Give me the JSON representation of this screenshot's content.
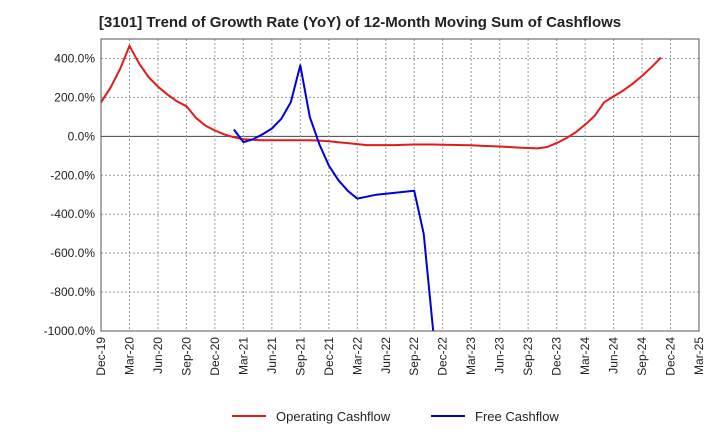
{
  "chart_data": {
    "type": "line",
    "title": "[3101]  Trend of Growth Rate (YoY) of 12-Month Moving Sum of Cashflows",
    "xlabel": "",
    "ylabel": "",
    "ylim": [
      -1000,
      500
    ],
    "grid": true,
    "legend_position": "bottom",
    "x_ticks": [
      "Dec-19",
      "Mar-20",
      "Jun-20",
      "Sep-20",
      "Dec-20",
      "Mar-21",
      "Jun-21",
      "Sep-21",
      "Dec-21",
      "Mar-22",
      "Jun-22",
      "Sep-22",
      "Dec-22",
      "Mar-23",
      "Jun-23",
      "Sep-23",
      "Dec-23",
      "Mar-24",
      "Jun-24",
      "Sep-24",
      "Dec-24",
      "Mar-25"
    ],
    "y_ticks": [
      {
        "value": 400,
        "label": "400.0%"
      },
      {
        "value": 200,
        "label": "200.0%"
      },
      {
        "value": 0,
        "label": "0.0%"
      },
      {
        "value": -200,
        "label": "-200.0%"
      },
      {
        "value": -400,
        "label": "-400.0%"
      },
      {
        "value": -600,
        "label": "-600.0%"
      },
      {
        "value": -800,
        "label": "-800.0%"
      },
      {
        "value": -1000,
        "label": "-1000.0%"
      }
    ],
    "series": [
      {
        "name": "Operating Cashflow",
        "color": "#e31a1c",
        "points": [
          [
            0,
            175
          ],
          [
            1,
            250
          ],
          [
            2,
            345
          ],
          [
            3,
            465
          ],
          [
            4,
            375
          ],
          [
            5,
            305
          ],
          [
            6,
            255
          ],
          [
            7,
            215
          ],
          [
            8,
            180
          ],
          [
            9,
            155
          ],
          [
            10,
            95
          ],
          [
            11,
            55
          ],
          [
            12,
            30
          ],
          [
            13,
            10
          ],
          [
            14,
            -5
          ],
          [
            15,
            -15
          ],
          [
            16,
            -18
          ],
          [
            17,
            -20
          ],
          [
            18,
            -20
          ],
          [
            19,
            -20
          ],
          [
            20,
            -20
          ],
          [
            21,
            -20
          ],
          [
            22,
            -20
          ],
          [
            23,
            -22
          ],
          [
            24,
            -25
          ],
          [
            25,
            -30
          ],
          [
            26,
            -35
          ],
          [
            27,
            -40
          ],
          [
            28,
            -45
          ],
          [
            29,
            -45
          ],
          [
            30,
            -45
          ],
          [
            31,
            -45
          ],
          [
            32,
            -43
          ],
          [
            33,
            -42
          ],
          [
            34,
            -42
          ],
          [
            35,
            -42
          ],
          [
            36,
            -43
          ],
          [
            37,
            -44
          ],
          [
            38,
            -45
          ],
          [
            39,
            -46
          ],
          [
            40,
            -48
          ],
          [
            41,
            -50
          ],
          [
            42,
            -52
          ],
          [
            43,
            -55
          ],
          [
            44,
            -58
          ],
          [
            45,
            -60
          ],
          [
            46,
            -62
          ],
          [
            47,
            -55
          ],
          [
            48,
            -35
          ],
          [
            49,
            -10
          ],
          [
            50,
            20
          ],
          [
            51,
            60
          ],
          [
            52,
            105
          ],
          [
            53,
            175
          ],
          [
            54,
            205
          ],
          [
            55,
            235
          ],
          [
            56,
            270
          ],
          [
            57,
            310
          ],
          [
            58,
            355
          ],
          [
            59,
            405
          ]
        ]
      },
      {
        "name": "Free Cashflow",
        "color": "#0000dd",
        "points": [
          [
            14,
            35
          ],
          [
            15,
            -30
          ],
          [
            16,
            -15
          ],
          [
            17,
            10
          ],
          [
            18,
            40
          ],
          [
            19,
            90
          ],
          [
            20,
            175
          ],
          [
            21,
            365
          ],
          [
            22,
            100
          ],
          [
            23,
            -40
          ],
          [
            24,
            -150
          ],
          [
            25,
            -225
          ],
          [
            26,
            -280
          ],
          [
            27,
            -320
          ],
          [
            28,
            -310
          ],
          [
            29,
            -300
          ],
          [
            30,
            -295
          ],
          [
            31,
            -290
          ],
          [
            32,
            -285
          ],
          [
            33,
            -280
          ],
          [
            34,
            -500
          ],
          [
            35,
            -1000
          ]
        ]
      }
    ]
  }
}
